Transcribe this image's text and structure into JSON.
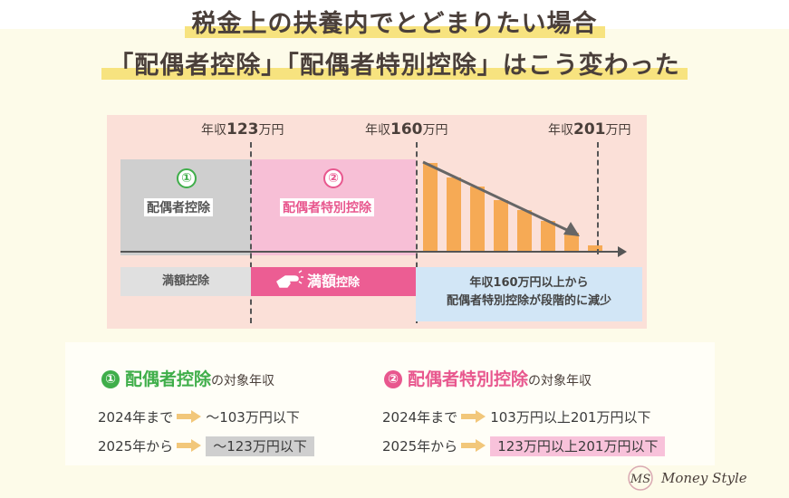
{
  "title": {
    "line1": "税金上の扶養内でとどまりたい場合",
    "line2": "「配偶者控除」「配偶者特別控除」はこう変わった"
  },
  "chart": {
    "x_labels": [
      {
        "prefix": "年収",
        "num": "123",
        "unit": "万円"
      },
      {
        "prefix": "年収",
        "num": "160",
        "unit": "万円"
      },
      {
        "prefix": "年収",
        "num": "201",
        "unit": "万円"
      }
    ],
    "block1": {
      "number": "①",
      "label": "配偶者控除"
    },
    "block2": {
      "number": "②",
      "label": "配偶者特別控除"
    },
    "decline_relative_heights": [
      1.0,
      0.84,
      0.74,
      0.59,
      0.47,
      0.35,
      0.22,
      0.08
    ]
  },
  "rows": {
    "gray": "満額控除",
    "pink_big": "満額",
    "pink_small": "控除",
    "blue_line1": "年収160万円以上から",
    "blue_line2": "配偶者特別控除が段階的に減少"
  },
  "info": {
    "left": {
      "num": "①",
      "title": "配偶者控除",
      "suffix": "の対象年収",
      "r1_label": "2024年まで",
      "r1_value": "～103万円以下",
      "r2_label": "2025年から",
      "r2_value": "～123万円以下"
    },
    "right": {
      "num": "②",
      "title": "配偶者特別控除",
      "suffix": "の対象年収",
      "r1_label": "2024年まで",
      "r1_value": "103万円以上201万円以下",
      "r2_label": "2025年から",
      "r2_value": "123万円以上201万円以下"
    }
  },
  "logo": {
    "mark": "MS",
    "text": "Money Style"
  },
  "colors": {
    "green": "#3fae4a",
    "pink": "#e8578e",
    "bar": "#f6aa55",
    "highlight_yellow": "#f7e37f"
  }
}
